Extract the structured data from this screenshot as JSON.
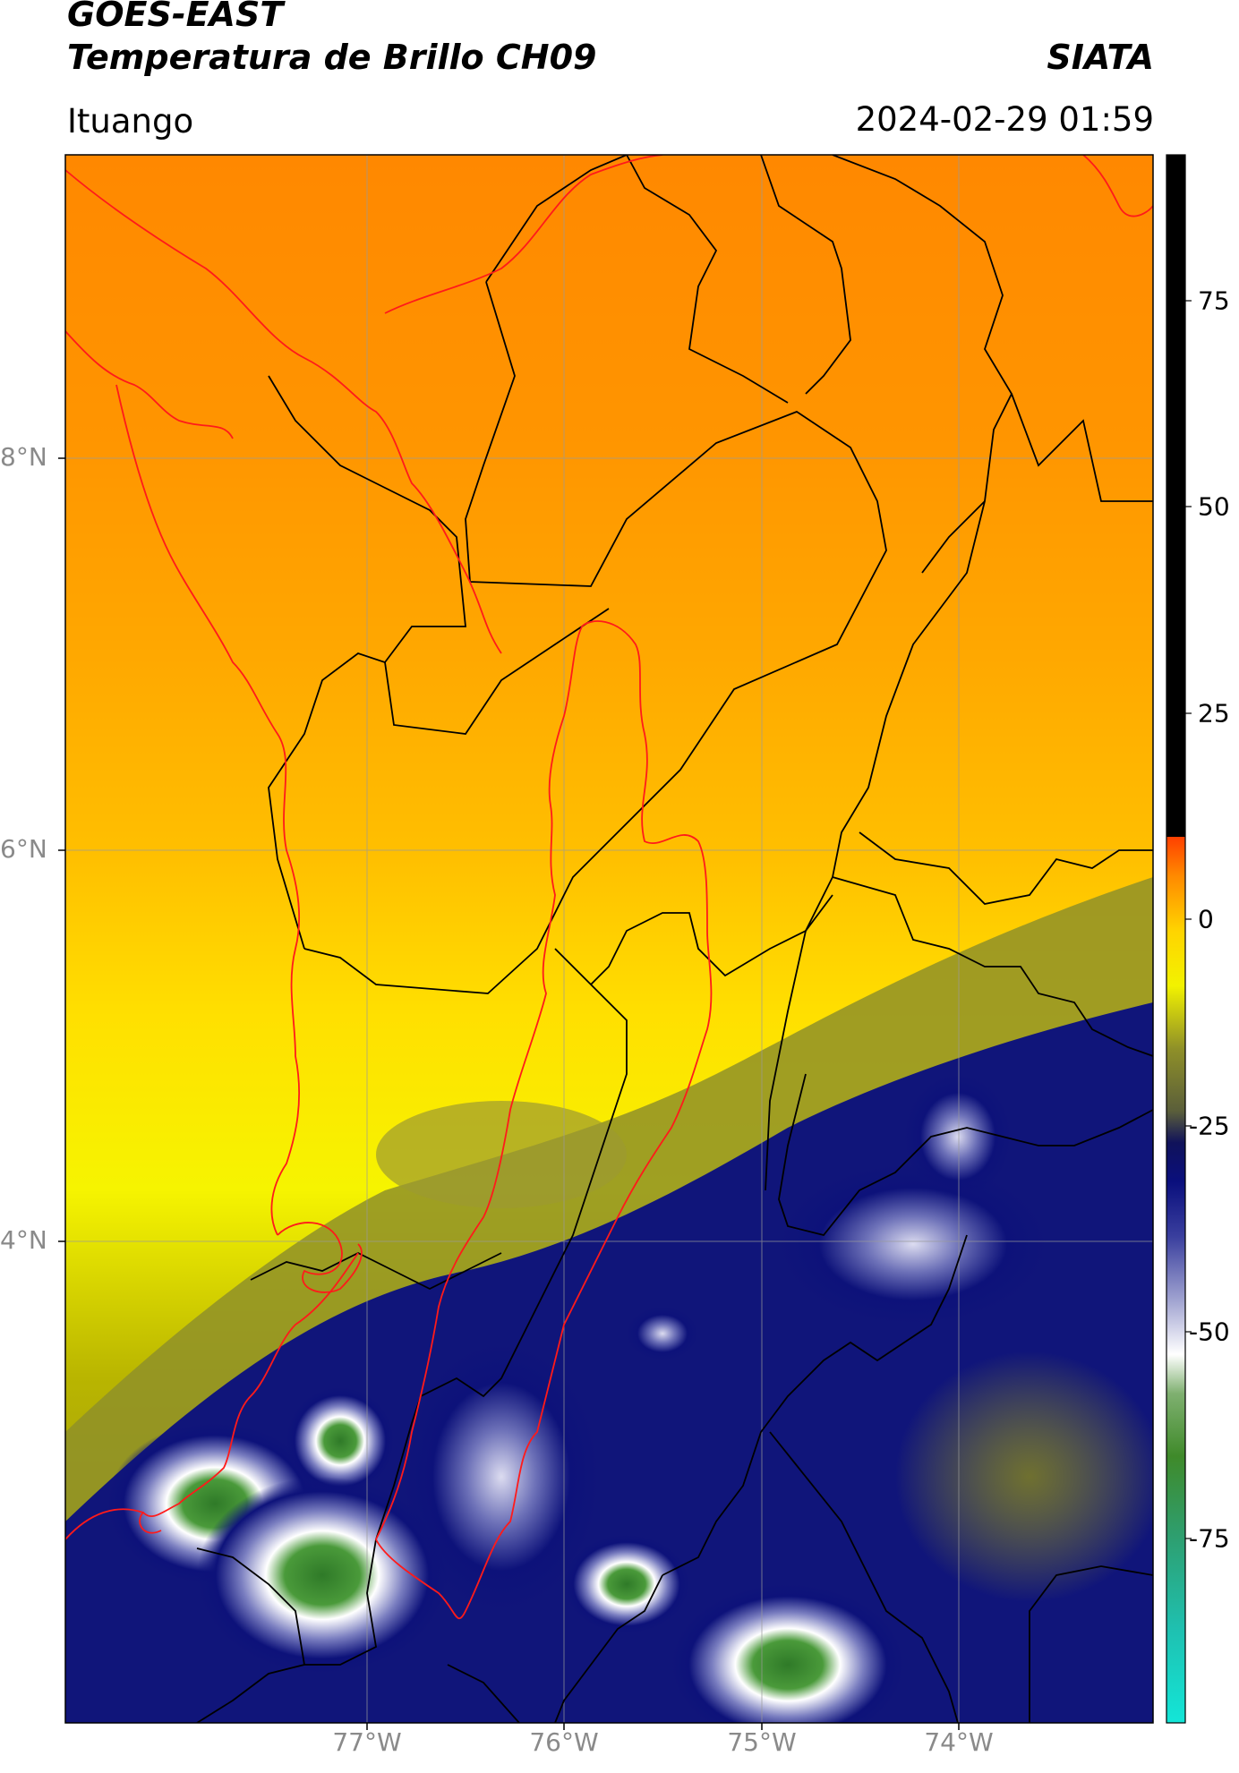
{
  "header": {
    "satellite": "GOES-EAST",
    "product": "Temperatura de Brillo CH09",
    "organization": "SIATA",
    "location": "Ituango",
    "timestamp": "2024-02-29 01:59"
  },
  "map": {
    "lat_labels": [
      "8°N",
      "6°N",
      "4°N"
    ],
    "lon_labels": [
      "77°W",
      "76°W",
      "75°W",
      "74°W"
    ]
  },
  "colorbar": {
    "ticks": [
      "75",
      "50",
      "25",
      "0",
      "-25",
      "-50",
      "-75"
    ],
    "range": [
      -94,
      91
    ],
    "colors": [
      "#ffffff",
      "#13e6d8",
      "#2e9e6e",
      "#3f8a2a",
      "#7fb070",
      "#ffffff",
      "#6f73b7",
      "#0a0f7d",
      "#10125a",
      "#5a5e3a",
      "#8f9028",
      "#f2f200",
      "#ffd400",
      "#ff8a00",
      "#ff0000",
      "#000000"
    ]
  }
}
